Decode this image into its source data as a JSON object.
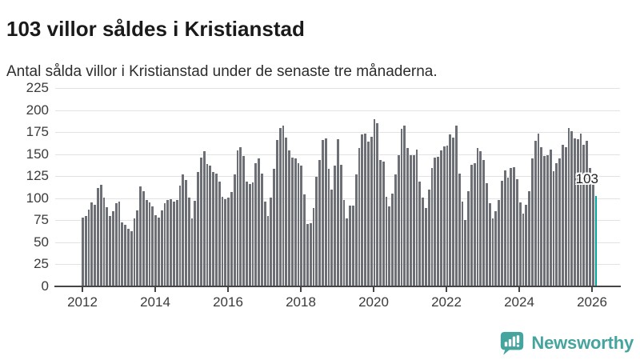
{
  "header": {
    "title": "103 villor såldes i Kristianstad",
    "subtitle": "Antal sålda villor i Kristianstad under de senaste tre månaderna."
  },
  "chart_data": {
    "type": "bar",
    "title": "103 villor såldes i Kristianstad",
    "xlabel": "",
    "ylabel": "",
    "x_period": "monthly",
    "x_start": "2012-01",
    "x_end": "2026-02",
    "ylim": [
      0,
      225
    ],
    "grid": true,
    "legend": "none",
    "yticks": [
      0,
      25,
      50,
      75,
      100,
      125,
      150,
      175,
      200,
      225
    ],
    "xtick_labels": [
      "2012",
      "2014",
      "2016",
      "2018",
      "2020",
      "2022",
      "2024",
      "2026"
    ],
    "values": [
      78,
      80,
      87,
      95,
      93,
      112,
      115,
      101,
      90,
      80,
      85,
      94,
      96,
      73,
      70,
      65,
      63,
      77,
      86,
      113,
      108,
      98,
      95,
      91,
      81,
      78,
      86,
      94,
      98,
      99,
      96,
      98,
      114,
      127,
      121,
      101,
      77,
      97,
      130,
      146,
      153,
      139,
      137,
      130,
      128,
      119,
      102,
      99,
      101,
      107,
      127,
      154,
      158,
      148,
      119,
      116,
      118,
      140,
      145,
      128,
      96,
      80,
      101,
      133,
      166,
      180,
      182,
      169,
      154,
      146,
      145,
      140,
      137,
      104,
      71,
      72,
      89,
      124,
      143,
      166,
      168,
      133,
      110,
      137,
      167,
      138,
      98,
      77,
      92,
      92,
      127,
      157,
      172,
      173,
      164,
      170,
      190,
      185,
      143,
      142,
      102,
      91,
      105,
      127,
      149,
      179,
      182,
      157,
      149,
      149,
      155,
      119,
      101,
      89,
      110,
      134,
      146,
      147,
      154,
      159,
      160,
      172,
      169,
      182,
      128,
      96,
      75,
      108,
      138,
      140,
      157,
      153,
      143,
      117,
      94,
      77,
      85,
      98,
      120,
      132,
      123,
      134,
      135,
      122,
      95,
      83,
      93,
      108,
      145,
      165,
      173,
      158,
      148,
      149,
      155,
      131,
      140,
      145,
      161,
      158,
      180,
      176,
      168,
      167,
      173,
      161,
      165,
      134,
      115,
      103
    ],
    "highlight": {
      "position": "last",
      "value": 103,
      "label": "103"
    },
    "colors": {
      "bar": "#6c6f75",
      "highlight": "#00a49d",
      "gridline": "#e2e2e2",
      "axis": "#454545"
    }
  },
  "footer": {
    "brand": "Newsworthy",
    "logo_icon": "bar-chart-speech-bubble-icon",
    "brand_color": "#46a49e"
  }
}
